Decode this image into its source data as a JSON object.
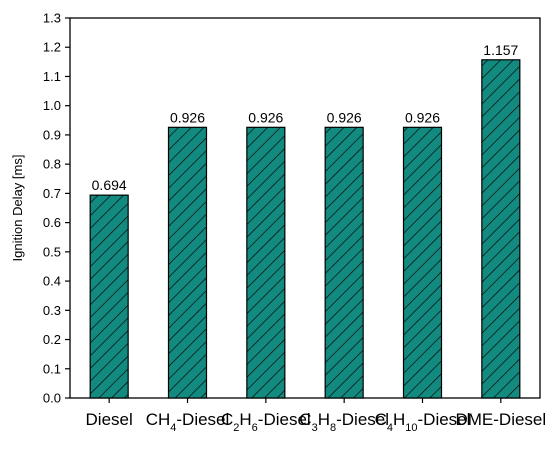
{
  "chart_data": {
    "type": "bar",
    "categories": [
      {
        "text": "Diesel",
        "lines": [
          [
            {
              "t": "Diesel"
            }
          ]
        ]
      },
      {
        "text": "CH4-Diesel",
        "lines": [
          [
            {
              "t": "CH"
            },
            {
              "t": "4",
              "sub": true
            },
            {
              "t": "-"
            }
          ],
          [
            {
              "t": "Diesel"
            }
          ]
        ]
      },
      {
        "text": "C2H6-Diesel",
        "lines": [
          [
            {
              "t": "C"
            },
            {
              "t": "2",
              "sub": true
            },
            {
              "t": "H"
            },
            {
              "t": "6",
              "sub": true
            },
            {
              "t": "-"
            }
          ],
          [
            {
              "t": "Diesel"
            }
          ]
        ]
      },
      {
        "text": "C3H8-Diesel",
        "lines": [
          [
            {
              "t": "C"
            },
            {
              "t": "3",
              "sub": true
            },
            {
              "t": "H"
            },
            {
              "t": "8",
              "sub": true
            },
            {
              "t": "-"
            }
          ],
          [
            {
              "t": "Diesel"
            }
          ]
        ]
      },
      {
        "text": "C4H10-Diesel",
        "lines": [
          [
            {
              "t": "C"
            },
            {
              "t": "4",
              "sub": true
            },
            {
              "t": "H"
            },
            {
              "t": "10",
              "sub": true
            },
            {
              "t": "-"
            }
          ],
          [
            {
              "t": "Diesel"
            }
          ]
        ]
      },
      {
        "text": "DME-Diesel",
        "lines": [
          [
            {
              "t": "DME-"
            }
          ],
          [
            {
              "t": "Diesel"
            }
          ]
        ]
      }
    ],
    "values": [
      0.694,
      0.926,
      0.926,
      0.926,
      0.926,
      1.157
    ],
    "data_labels": [
      "0.694",
      "0.926",
      "0.926",
      "0.926",
      "0.926",
      "1.157"
    ],
    "ylabel": "Ignition Delay [ms]",
    "xlabel": "",
    "ylim": [
      0.0,
      1.3
    ],
    "yticks": [
      "0.0",
      "0.1",
      "0.2",
      "0.3",
      "0.4",
      "0.5",
      "0.6",
      "0.7",
      "0.8",
      "0.9",
      "1.0",
      "1.1",
      "1.2",
      "1.3"
    ],
    "bar_color": "#138a7f",
    "hatch": "diagonal",
    "grid": false
  }
}
